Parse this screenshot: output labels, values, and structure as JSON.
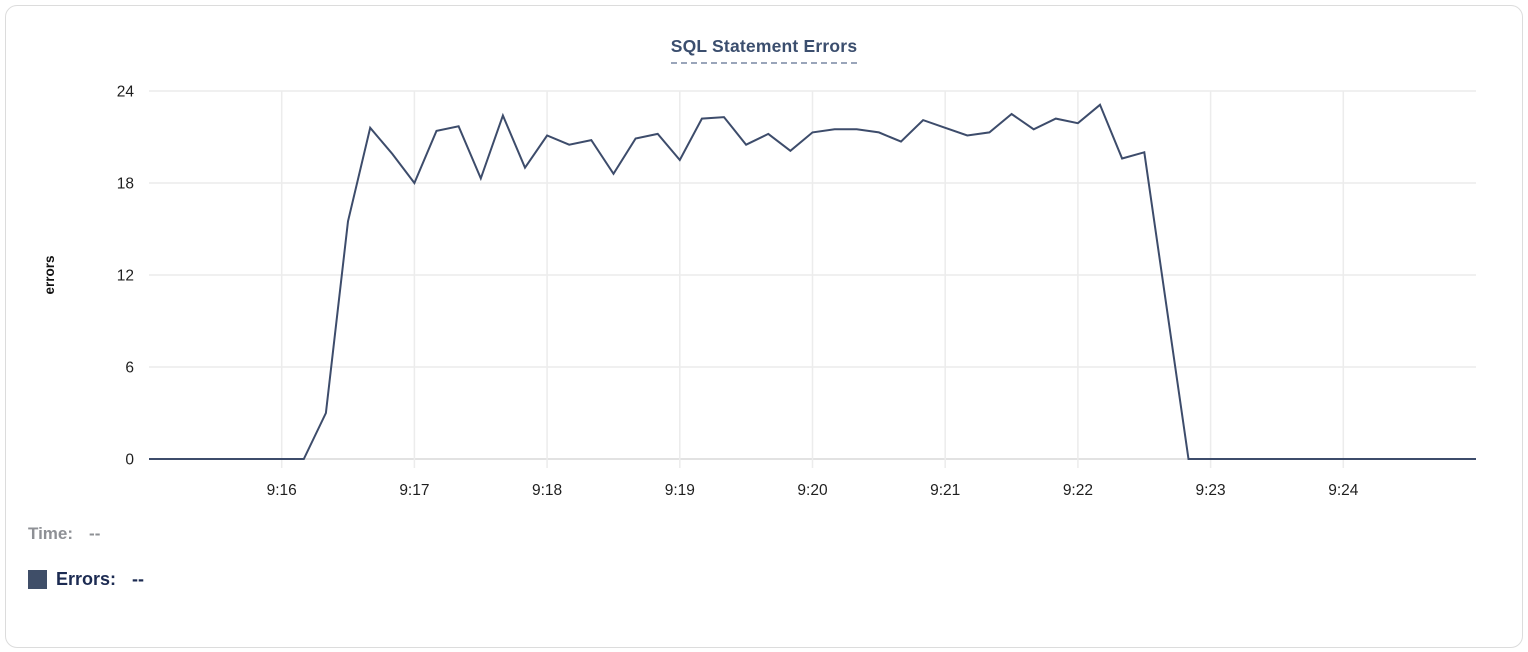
{
  "card": {
    "title": "SQL Statement Errors"
  },
  "readout": {
    "time_label": "Time:",
    "time_value": "--",
    "errors_label": "Errors:",
    "errors_value": "--"
  },
  "colors": {
    "line": "#3d4c6b",
    "title": "#3b4e6e",
    "title_underline": "#9aa5ba",
    "grid": "#ececec",
    "axis_line": "#e2e2e2",
    "tick_text": "#1f1f1f",
    "ylabel_text": "#111111",
    "legend_swatch": "#3f4e68",
    "time_gray": "#8e9095",
    "errors_navy": "#1c2b52",
    "card_border": "#dcdcdc"
  },
  "chart_data": {
    "type": "line",
    "title": "SQL Statement Errors",
    "xlabel": "",
    "ylabel": "errors",
    "ylim": [
      0,
      24
    ],
    "yticks": [
      0,
      6,
      12,
      18,
      24
    ],
    "grid": true,
    "legend_position": "bottom-left",
    "x_range": [
      "9:15:00",
      "9:25:00"
    ],
    "point_interval_seconds": 10,
    "xtick_labels": [
      "9:16",
      "9:17",
      "9:18",
      "9:19",
      "9:20",
      "9:21",
      "9:22",
      "9:23",
      "9:24"
    ],
    "series": [
      {
        "name": "Errors",
        "color": "#3d4c6b",
        "values": [
          0,
          0,
          0,
          0,
          0,
          0,
          0,
          0,
          3,
          15.5,
          21.6,
          19.9,
          18,
          21.4,
          21.7,
          18.3,
          22.4,
          19,
          21.1,
          20.5,
          20.8,
          18.6,
          20.9,
          21.2,
          19.5,
          22.2,
          22.3,
          20.5,
          21.2,
          20.1,
          21.3,
          21.5,
          21.5,
          21.3,
          20.7,
          22.1,
          21.6,
          21.1,
          21.3,
          22.5,
          21.5,
          22.2,
          21.9,
          23.1,
          19.6,
          20,
          10,
          0,
          0,
          0,
          0,
          0,
          0,
          0,
          0,
          0,
          0,
          0,
          0,
          0,
          0
        ]
      }
    ]
  }
}
